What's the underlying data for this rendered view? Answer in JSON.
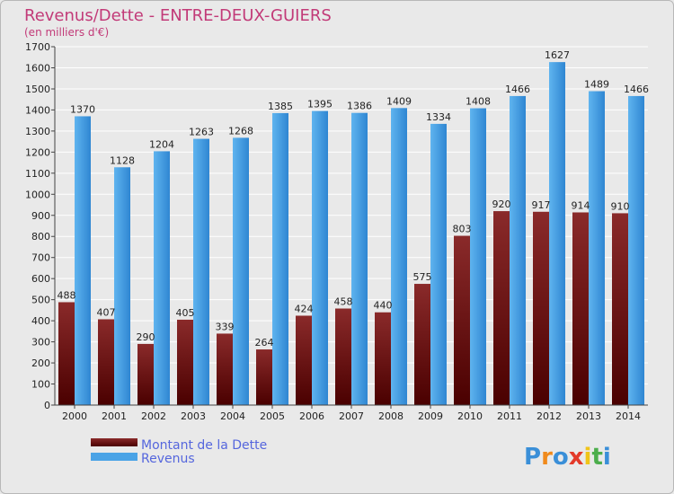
{
  "chart_data": {
    "type": "bar",
    "title": "Revenus/Dette - ENTRE-DEUX-GUIERS",
    "subtitle": "(en milliers d'€)",
    "categories": [
      "2000",
      "2001",
      "2002",
      "2003",
      "2004",
      "2005",
      "2006",
      "2007",
      "2008",
      "2009",
      "2010",
      "2011",
      "2012",
      "2013",
      "2014"
    ],
    "series": [
      {
        "name": "Montant de la Dette",
        "color": "#6e1414",
        "values": [
          488,
          407,
          290,
          405,
          339,
          264,
          424,
          458,
          440,
          575,
          803,
          920,
          917,
          914,
          910
        ]
      },
      {
        "name": "Revenus",
        "color": "#4aa3e6",
        "values": [
          1370,
          1128,
          1204,
          1263,
          1268,
          1385,
          1395,
          1386,
          1409,
          1334,
          1408,
          1466,
          1627,
          1489,
          1466
        ]
      }
    ],
    "ylim": [
      0,
      1700
    ],
    "ytick_step": 100,
    "grid": true,
    "legend_position": "bottom-left"
  },
  "logo": {
    "letters": [
      "P",
      "r",
      "o",
      "x",
      "i",
      "t",
      "i"
    ],
    "colors": [
      "#3a8fd8",
      "#f08a1c",
      "#3a8fd8",
      "#e33a2a",
      "#f0c419",
      "#4cae4c",
      "#3a8fd8"
    ]
  }
}
